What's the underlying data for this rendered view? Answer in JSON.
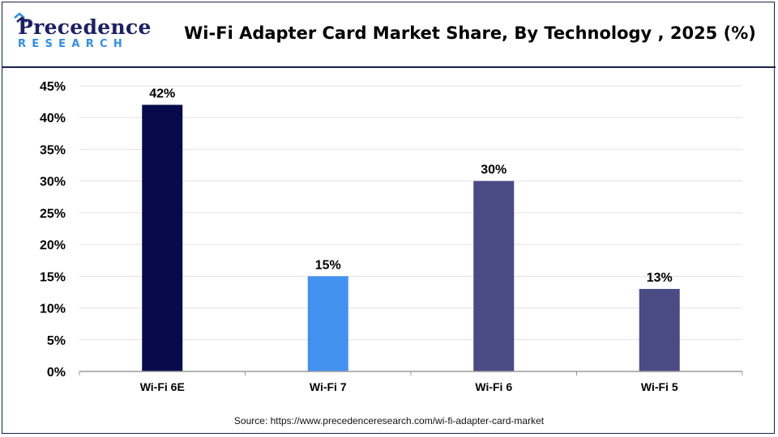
{
  "header": {
    "logo_word": "Precedence",
    "logo_sub": "RESEARCH",
    "title": "Wi-Fi Adapter Card Market Share, By Technology , 2025 (%)"
  },
  "colors": {
    "brand_navy": "#1c2063",
    "brand_blue": "#2f8fe8",
    "grid": "#e3e3e3",
    "axis": "#9a9a9a"
  },
  "chart_data": {
    "type": "bar",
    "categories": [
      "Wi-Fi 6E",
      "Wi-Fi 7",
      "Wi-Fi 6",
      "Wi-Fi 5"
    ],
    "values": [
      42,
      15,
      30,
      13
    ],
    "value_labels": [
      "42%",
      "15%",
      "30%",
      "13%"
    ],
    "bar_colors": [
      "#070b4b",
      "#4391ef",
      "#4a4b85",
      "#4a4b85"
    ],
    "title": "Wi-Fi Adapter Card Market Share, By Technology , 2025 (%)",
    "xlabel": "",
    "ylabel": "",
    "ylim": [
      0,
      45
    ],
    "yticks": [
      0,
      5,
      10,
      15,
      20,
      25,
      30,
      35,
      40,
      45
    ],
    "ytick_labels": [
      "0%",
      "5%",
      "10%",
      "15%",
      "20%",
      "25%",
      "30%",
      "35%",
      "40%",
      "45%"
    ],
    "grid": true,
    "legend": "none"
  },
  "footer": {
    "source": "Source: https://www.precedenceresearch.com/wi-fi-adapter-card-market"
  }
}
